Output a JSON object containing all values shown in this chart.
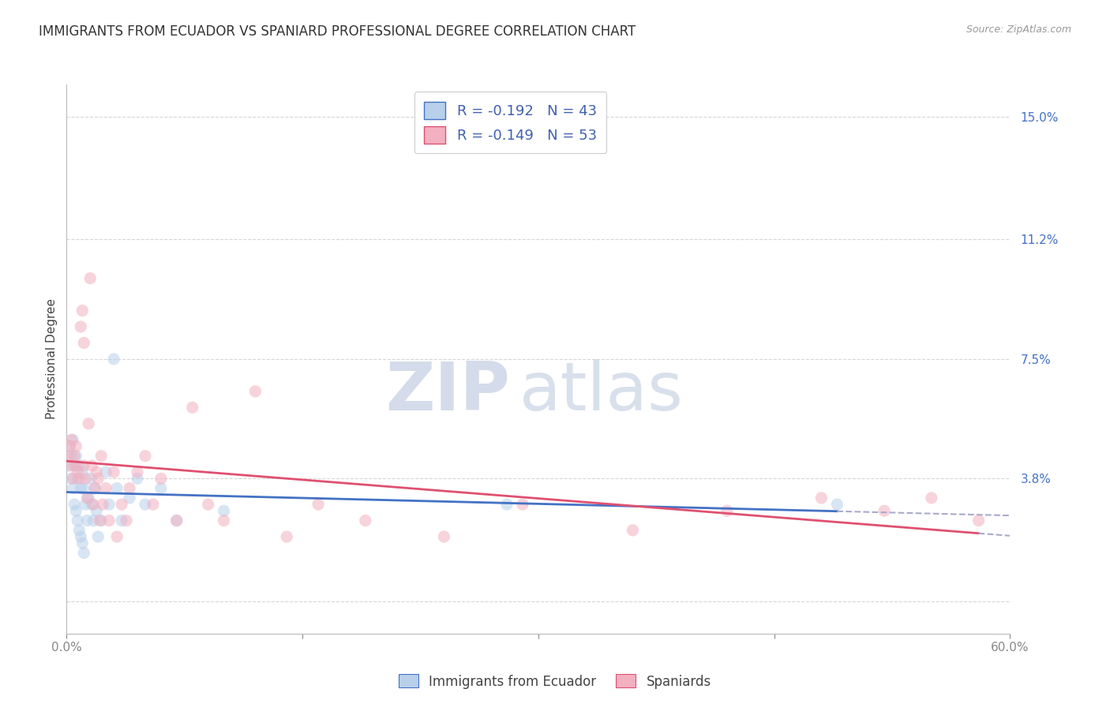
{
  "title": "IMMIGRANTS FROM ECUADOR VS SPANIARD PROFESSIONAL DEGREE CORRELATION CHART",
  "source": "Source: ZipAtlas.com",
  "ylabel": "Professional Degree",
  "xlim": [
    0.0,
    0.6
  ],
  "ylim": [
    -0.01,
    0.16
  ],
  "yticks": [
    0.0,
    0.038,
    0.075,
    0.112,
    0.15
  ],
  "ytick_labels": [
    "",
    "3.8%",
    "7.5%",
    "11.2%",
    "15.0%"
  ],
  "xticks": [
    0.0,
    0.15,
    0.3,
    0.45,
    0.6
  ],
  "xtick_labels": [
    "0.0%",
    "",
    "",
    "",
    "60.0%"
  ],
  "background_color": "#ffffff",
  "grid_color": "#cccccc",
  "watermark_zip": "ZIP",
  "watermark_atlas": "atlas",
  "series": [
    {
      "name": "Immigrants from Ecuador",
      "R": -0.192,
      "N": 43,
      "color": "#b8d0ea",
      "line_color": "#4472c4",
      "x": [
        0.001,
        0.002,
        0.003,
        0.003,
        0.004,
        0.004,
        0.005,
        0.005,
        0.006,
        0.006,
        0.007,
        0.007,
        0.008,
        0.008,
        0.009,
        0.009,
        0.01,
        0.01,
        0.011,
        0.011,
        0.012,
        0.013,
        0.014,
        0.015,
        0.016,
        0.017,
        0.018,
        0.019,
        0.02,
        0.022,
        0.025,
        0.027,
        0.03,
        0.032,
        0.035,
        0.04,
        0.045,
        0.05,
        0.06,
        0.07,
        0.1,
        0.28,
        0.49
      ],
      "y": [
        0.042,
        0.048,
        0.045,
        0.038,
        0.05,
        0.035,
        0.042,
        0.03,
        0.045,
        0.028,
        0.038,
        0.025,
        0.042,
        0.022,
        0.035,
        0.02,
        0.04,
        0.018,
        0.035,
        0.015,
        0.03,
        0.025,
        0.032,
        0.038,
        0.03,
        0.025,
        0.035,
        0.028,
        0.02,
        0.025,
        0.04,
        0.03,
        0.075,
        0.035,
        0.025,
        0.032,
        0.038,
        0.03,
        0.035,
        0.025,
        0.028,
        0.03,
        0.03
      ]
    },
    {
      "name": "Spaniards",
      "R": -0.149,
      "N": 53,
      "color": "#f2b0c0",
      "line_color": "#e05070",
      "x": [
        0.001,
        0.002,
        0.003,
        0.003,
        0.004,
        0.005,
        0.006,
        0.006,
        0.007,
        0.008,
        0.009,
        0.01,
        0.011,
        0.011,
        0.012,
        0.013,
        0.014,
        0.015,
        0.016,
        0.017,
        0.018,
        0.019,
        0.02,
        0.021,
        0.022,
        0.023,
        0.025,
        0.027,
        0.03,
        0.032,
        0.035,
        0.038,
        0.04,
        0.045,
        0.05,
        0.055,
        0.06,
        0.07,
        0.08,
        0.09,
        0.1,
        0.12,
        0.14,
        0.16,
        0.19,
        0.24,
        0.29,
        0.36,
        0.42,
        0.48,
        0.52,
        0.55,
        0.58
      ],
      "y": [
        0.045,
        0.048,
        0.05,
        0.042,
        0.038,
        0.045,
        0.042,
        0.048,
        0.04,
        0.038,
        0.085,
        0.09,
        0.08,
        0.042,
        0.038,
        0.032,
        0.055,
        0.1,
        0.042,
        0.03,
        0.035,
        0.04,
        0.038,
        0.025,
        0.045,
        0.03,
        0.035,
        0.025,
        0.04,
        0.02,
        0.03,
        0.025,
        0.035,
        0.04,
        0.045,
        0.03,
        0.038,
        0.025,
        0.06,
        0.03,
        0.025,
        0.065,
        0.02,
        0.03,
        0.025,
        0.02,
        0.03,
        0.022,
        0.028,
        0.032,
        0.028,
        0.032,
        0.025
      ]
    }
  ],
  "legend_entries": [
    {
      "label": "R = -0.192   N = 43",
      "color": "#b8d0ea",
      "border_color": "#4472c4"
    },
    {
      "label": "R = -0.149   N = 53",
      "color": "#f2b0c0",
      "border_color": "#e05070"
    }
  ],
  "legend_text_color": "#4060b0",
  "title_fontsize": 12,
  "axis_label_fontsize": 11,
  "tick_fontsize": 11,
  "marker_size": 11,
  "marker_alpha": 0.55,
  "dashed_line_color": "#aaaacc"
}
